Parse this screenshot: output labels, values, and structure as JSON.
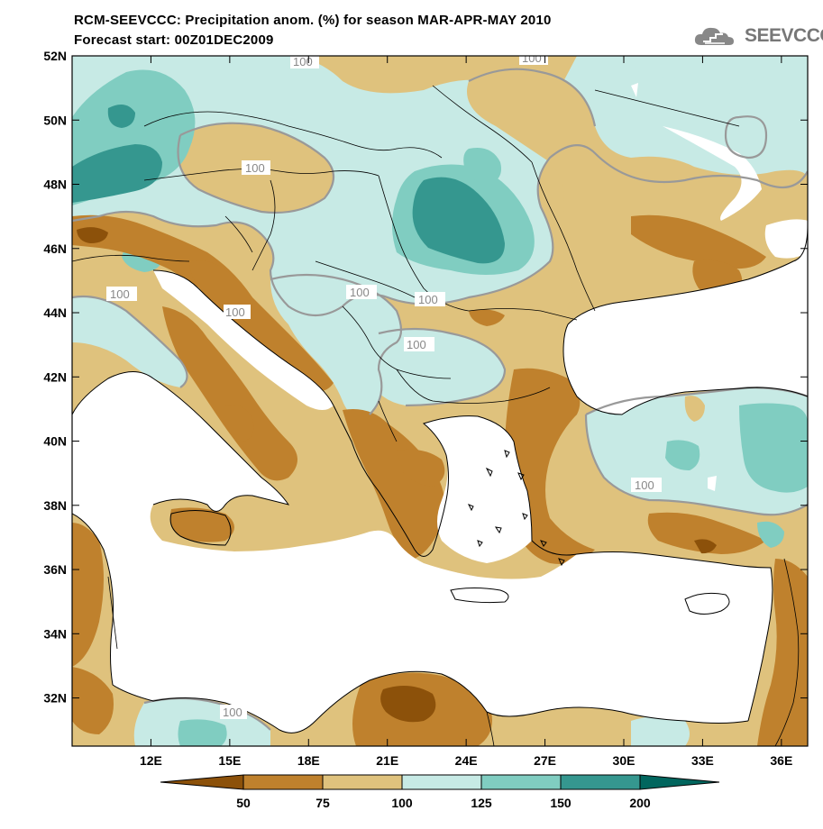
{
  "title_line1": "RCM-SEEVCCC: Precipitation anom. (%) for season MAR-APR-MAY 2010",
  "title_line2": "Forecast start: 00Z01DEC2009",
  "logo_text": "SEEVCCC",
  "lat_labels": [
    "52N",
    "50N",
    "48N",
    "46N",
    "44N",
    "42N",
    "40N",
    "38N",
    "36N",
    "34N",
    "32N"
  ],
  "lon_labels": [
    "12E",
    "15E",
    "18E",
    "21E",
    "24E",
    "27E",
    "30E",
    "33E",
    "36E"
  ],
  "contour_labels": [
    "100",
    "100",
    "100",
    "100",
    "100",
    "100",
    "100",
    "100",
    "100",
    "100"
  ],
  "colorbar": {
    "ticks": [
      "50",
      "75",
      "100",
      "125",
      "150",
      "200"
    ],
    "colors": [
      "#8c510a",
      "#bf812d",
      "#dfc27d",
      "#c7eae5",
      "#80cdc1",
      "#35978f",
      "#01665e"
    ]
  },
  "chart_data": {
    "type": "heatmap",
    "title": "RCM-SEEVCCC: Precipitation anom. (%) for season MAR-APR-MAY 2010",
    "subtitle": "Forecast start: 00Z01DEC2009",
    "xlim": [
      9,
      37
    ],
    "ylim": [
      30.5,
      52
    ],
    "x_ticks": [
      12,
      15,
      18,
      21,
      24,
      27,
      30,
      33,
      36
    ],
    "y_ticks": [
      32,
      34,
      36,
      38,
      40,
      42,
      44,
      46,
      48,
      50,
      52
    ],
    "levels": [
      50,
      75,
      100,
      125,
      150,
      200
    ],
    "contour_value": 100
  }
}
